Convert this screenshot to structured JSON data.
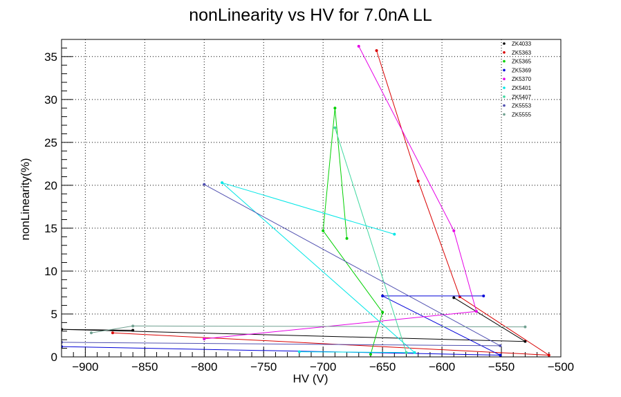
{
  "chart_data": {
    "type": "line",
    "title": "nonLinearity vs HV for 7.0nA LL",
    "xlabel": "HV (V)",
    "ylabel": "nonLinearity(%)",
    "xlim": [
      -920,
      -500
    ],
    "ylim": [
      0,
      37
    ],
    "grid": true,
    "legend_placement": "top-right",
    "x_ticks": [
      -900,
      -850,
      -800,
      -750,
      -700,
      -650,
      -600,
      -550,
      -500
    ],
    "y_ticks": [
      0,
      5,
      10,
      15,
      20,
      25,
      30,
      35
    ],
    "x_tick_labels": [
      "−900",
      "−850",
      "−800",
      "−750",
      "−700",
      "−650",
      "−600",
      "−550",
      "−500"
    ],
    "y_tick_labels": [
      "0",
      "5",
      "10",
      "15",
      "20",
      "25",
      "30",
      "35"
    ],
    "series": [
      {
        "name": "ZK4033",
        "color": "#000000",
        "points": [
          [
            -590,
            6.9
          ],
          [
            -530,
            1.8
          ],
          [
            -920,
            3.2
          ],
          [
            -860,
            3.1
          ]
        ]
      },
      {
        "name": "ZK5363",
        "color": "#d90000",
        "points": [
          [
            -655,
            35.7
          ],
          [
            -620,
            20.5
          ],
          [
            -585,
            7.0
          ],
          [
            -510,
            0.2
          ],
          [
            -877,
            2.8
          ]
        ]
      },
      {
        "name": "ZK5365",
        "color": "#00d000",
        "points": [
          [
            -680,
            13.8
          ],
          [
            -690,
            29.0
          ],
          [
            -700,
            14.7
          ],
          [
            -650,
            5.2
          ],
          [
            -660,
            0.3
          ]
        ]
      },
      {
        "name": "ZK5369",
        "color": "#0000d8",
        "points": [
          [
            -565,
            7.1
          ],
          [
            -650,
            7.1
          ],
          [
            -551,
            0.2
          ],
          [
            -920,
            1.2
          ]
        ]
      },
      {
        "name": "ZK5370",
        "color": "#e600e6",
        "points": [
          [
            -670,
            36.2
          ],
          [
            -590,
            14.7
          ],
          [
            -571,
            5.3
          ],
          [
            -800,
            2.1
          ]
        ]
      },
      {
        "name": "ZK5401",
        "color": "#00e6e6",
        "points": [
          [
            -640,
            14.3
          ],
          [
            -785,
            20.3
          ],
          [
            -623,
            0.5
          ],
          [
            -720,
            0.6
          ]
        ]
      },
      {
        "name": "ZK5407",
        "color": "#40d8a0",
        "points": [
          [
            -690,
            26.7
          ],
          [
            -630,
            0.5
          ]
        ]
      },
      {
        "name": "ZK5553",
        "color": "#5050b0",
        "points": [
          [
            -800,
            20.1
          ],
          [
            -551,
            1.3
          ],
          [
            -920,
            1.7
          ]
        ]
      },
      {
        "name": "ZK5555",
        "color": "#70a090",
        "points": [
          [
            -530,
            3.5
          ],
          [
            -860,
            3.6
          ],
          [
            -895,
            2.8
          ]
        ]
      }
    ]
  }
}
